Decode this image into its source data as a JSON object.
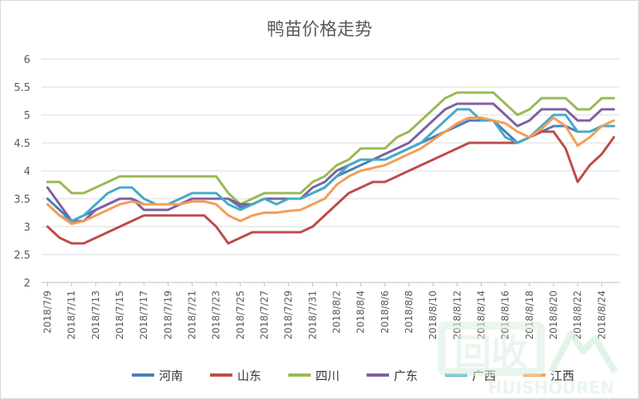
{
  "chart_data": {
    "type": "line",
    "title": "鸭苗价格走势",
    "xlabel": "",
    "ylabel": "",
    "ylim": [
      2,
      6
    ],
    "yticks": [
      2,
      2.5,
      3,
      3.5,
      4,
      4.5,
      5,
      5.5,
      6
    ],
    "grid": true,
    "legend_position": "bottom",
    "x": [
      "2018/7/9",
      "2018/7/10",
      "2018/7/11",
      "2018/7/12",
      "2018/7/13",
      "2018/7/14",
      "2018/7/15",
      "2018/7/16",
      "2018/7/17",
      "2018/7/18",
      "2018/7/19",
      "2018/7/20",
      "2018/7/21",
      "2018/7/22",
      "2018/7/23",
      "2018/7/24",
      "2018/7/25",
      "2018/7/26",
      "2018/7/27",
      "2018/7/28",
      "2018/7/29",
      "2018/7/30",
      "2018/7/31",
      "2018/8/1",
      "2018/8/2",
      "2018/8/3",
      "2018/8/4",
      "2018/8/5",
      "2018/8/6",
      "2018/8/7",
      "2018/8/8",
      "2018/8/9",
      "2018/8/10",
      "2018/8/11",
      "2018/8/12",
      "2018/8/13",
      "2018/8/14",
      "2018/8/15",
      "2018/8/16",
      "2018/8/17",
      "2018/8/18",
      "2018/8/19",
      "2018/8/20",
      "2018/8/21",
      "2018/8/22",
      "2018/8/23",
      "2018/8/24",
      "2018/8/25"
    ],
    "xtick_labels": [
      "2018/7/9",
      "2018/7/11",
      "2018/7/13",
      "2018/7/15",
      "2018/7/17",
      "2018/7/19",
      "2018/7/21",
      "2018/7/23",
      "2018/7/25",
      "2018/7/27",
      "2018/7/29",
      "2018/7/31",
      "2018/8/2",
      "2018/8/4",
      "2018/8/6",
      "2018/8/8",
      "2018/8/10",
      "2018/8/12",
      "2018/8/14",
      "2018/8/16",
      "2018/8/18",
      "2018/8/20",
      "2018/8/22",
      "2018/8/24"
    ],
    "series": [
      {
        "name": "河南",
        "color": "#4a7ebb",
        "values": [
          3.5,
          3.3,
          3.1,
          3.2,
          3.3,
          3.4,
          3.5,
          3.5,
          3.4,
          3.4,
          3.4,
          3.4,
          3.5,
          3.5,
          3.5,
          3.5,
          3.35,
          3.4,
          3.5,
          3.5,
          3.5,
          3.5,
          3.6,
          3.7,
          3.9,
          4.0,
          4.1,
          4.2,
          4.2,
          4.3,
          4.4,
          4.5,
          4.6,
          4.7,
          4.8,
          4.9,
          4.9,
          4.9,
          4.7,
          4.5,
          4.6,
          4.7,
          4.8,
          4.8,
          4.7,
          4.7,
          4.8,
          4.8
        ]
      },
      {
        "name": "山东",
        "color": "#be4b48",
        "values": [
          3.0,
          2.8,
          2.7,
          2.7,
          2.8,
          2.9,
          3.0,
          3.1,
          3.2,
          3.2,
          3.2,
          3.2,
          3.2,
          3.2,
          3.0,
          2.7,
          2.8,
          2.9,
          2.9,
          2.9,
          2.9,
          2.9,
          3.0,
          3.2,
          3.4,
          3.6,
          3.7,
          3.8,
          3.8,
          3.9,
          4.0,
          4.1,
          4.2,
          4.3,
          4.4,
          4.5,
          4.5,
          4.5,
          4.5,
          4.5,
          4.6,
          4.7,
          4.7,
          4.4,
          3.8,
          4.1,
          4.3,
          4.6
        ]
      },
      {
        "name": "四川",
        "color": "#98b954",
        "values": [
          3.8,
          3.8,
          3.6,
          3.6,
          3.7,
          3.8,
          3.9,
          3.9,
          3.9,
          3.9,
          3.9,
          3.9,
          3.9,
          3.9,
          3.9,
          3.6,
          3.4,
          3.5,
          3.6,
          3.6,
          3.6,
          3.6,
          3.8,
          3.9,
          4.1,
          4.2,
          4.4,
          4.4,
          4.4,
          4.6,
          4.7,
          4.9,
          5.1,
          5.3,
          5.4,
          5.4,
          5.4,
          5.4,
          5.2,
          5.0,
          5.1,
          5.3,
          5.3,
          5.3,
          5.1,
          5.1,
          5.3,
          5.3
        ]
      },
      {
        "name": "广东",
        "color": "#7d60a0",
        "values": [
          3.7,
          3.4,
          3.1,
          3.1,
          3.3,
          3.4,
          3.5,
          3.5,
          3.3,
          3.3,
          3.3,
          3.4,
          3.5,
          3.5,
          3.5,
          3.5,
          3.4,
          3.4,
          3.5,
          3.5,
          3.5,
          3.5,
          3.7,
          3.8,
          4.0,
          4.1,
          4.2,
          4.2,
          4.3,
          4.4,
          4.5,
          4.7,
          4.9,
          5.1,
          5.2,
          5.2,
          5.2,
          5.2,
          5.0,
          4.8,
          4.9,
          5.1,
          5.1,
          5.1,
          4.9,
          4.9,
          5.1,
          5.1
        ]
      },
      {
        "name": "广西",
        "color": "#46aac5",
        "values": [
          3.4,
          3.2,
          3.1,
          3.2,
          3.4,
          3.6,
          3.7,
          3.7,
          3.5,
          3.4,
          3.4,
          3.5,
          3.6,
          3.6,
          3.6,
          3.4,
          3.3,
          3.4,
          3.5,
          3.4,
          3.5,
          3.5,
          3.6,
          3.7,
          3.9,
          4.1,
          4.2,
          4.2,
          4.2,
          4.3,
          4.4,
          4.5,
          4.7,
          4.9,
          5.1,
          5.1,
          4.9,
          4.9,
          4.6,
          4.5,
          4.6,
          4.8,
          5.0,
          5.0,
          4.7,
          4.7,
          4.8,
          4.8
        ]
      },
      {
        "name": "江西",
        "color": "#f59d56",
        "values": [
          3.4,
          3.2,
          3.05,
          3.1,
          3.2,
          3.3,
          3.4,
          3.45,
          3.4,
          3.4,
          3.4,
          3.4,
          3.45,
          3.45,
          3.4,
          3.2,
          3.1,
          3.2,
          3.25,
          3.25,
          3.28,
          3.3,
          3.4,
          3.5,
          3.75,
          3.9,
          4.0,
          4.05,
          4.1,
          4.2,
          4.3,
          4.4,
          4.55,
          4.7,
          4.85,
          4.95,
          4.95,
          4.9,
          4.85,
          4.7,
          4.6,
          4.75,
          4.95,
          4.8,
          4.45,
          4.6,
          4.8,
          4.9
        ]
      }
    ]
  },
  "watermark": {
    "main": "回收",
    "sub": "HUISHOUREN"
  }
}
